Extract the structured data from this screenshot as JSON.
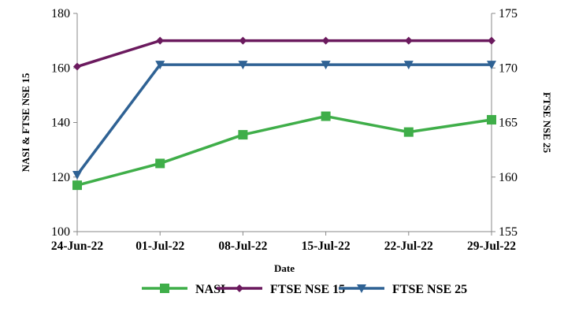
{
  "chart_data": {
    "type": "line",
    "x": [
      "24-Jun-22",
      "01-Jul-22",
      "08-Jul-22",
      "15-Jul-22",
      "22-Jul-22",
      "29-Jul-22"
    ],
    "xlabel": "Date",
    "ylabel_left": "NASI & FTSE NSE 15",
    "ylabel_right": "FTSE NSE 25",
    "ylim_left": [
      100,
      180
    ],
    "ylim_right": [
      155,
      175
    ],
    "yticks_left": [
      "100",
      "120",
      "140",
      "160",
      "180"
    ],
    "yticks_right": [
      "155",
      "160",
      "165",
      "170",
      "175"
    ],
    "grid": false,
    "legend_position": "bottom",
    "series": [
      {
        "name": "NASI",
        "axis": "left",
        "color": "#3fae49",
        "marker": "square",
        "values": [
          117,
          125,
          135.5,
          142.3,
          136.5,
          141
        ]
      },
      {
        "name": "FTSE NSE 15",
        "axis": "left",
        "color": "#6b1a5e",
        "marker": "diamond",
        "values": [
          160.5,
          170,
          170,
          170,
          170,
          170
        ]
      },
      {
        "name": "FTSE NSE 25",
        "axis": "right",
        "color": "#2f6294",
        "marker": "triangle-down",
        "values": [
          160.2,
          170.3,
          170.3,
          170.3,
          170.3,
          170.3
        ]
      }
    ]
  }
}
